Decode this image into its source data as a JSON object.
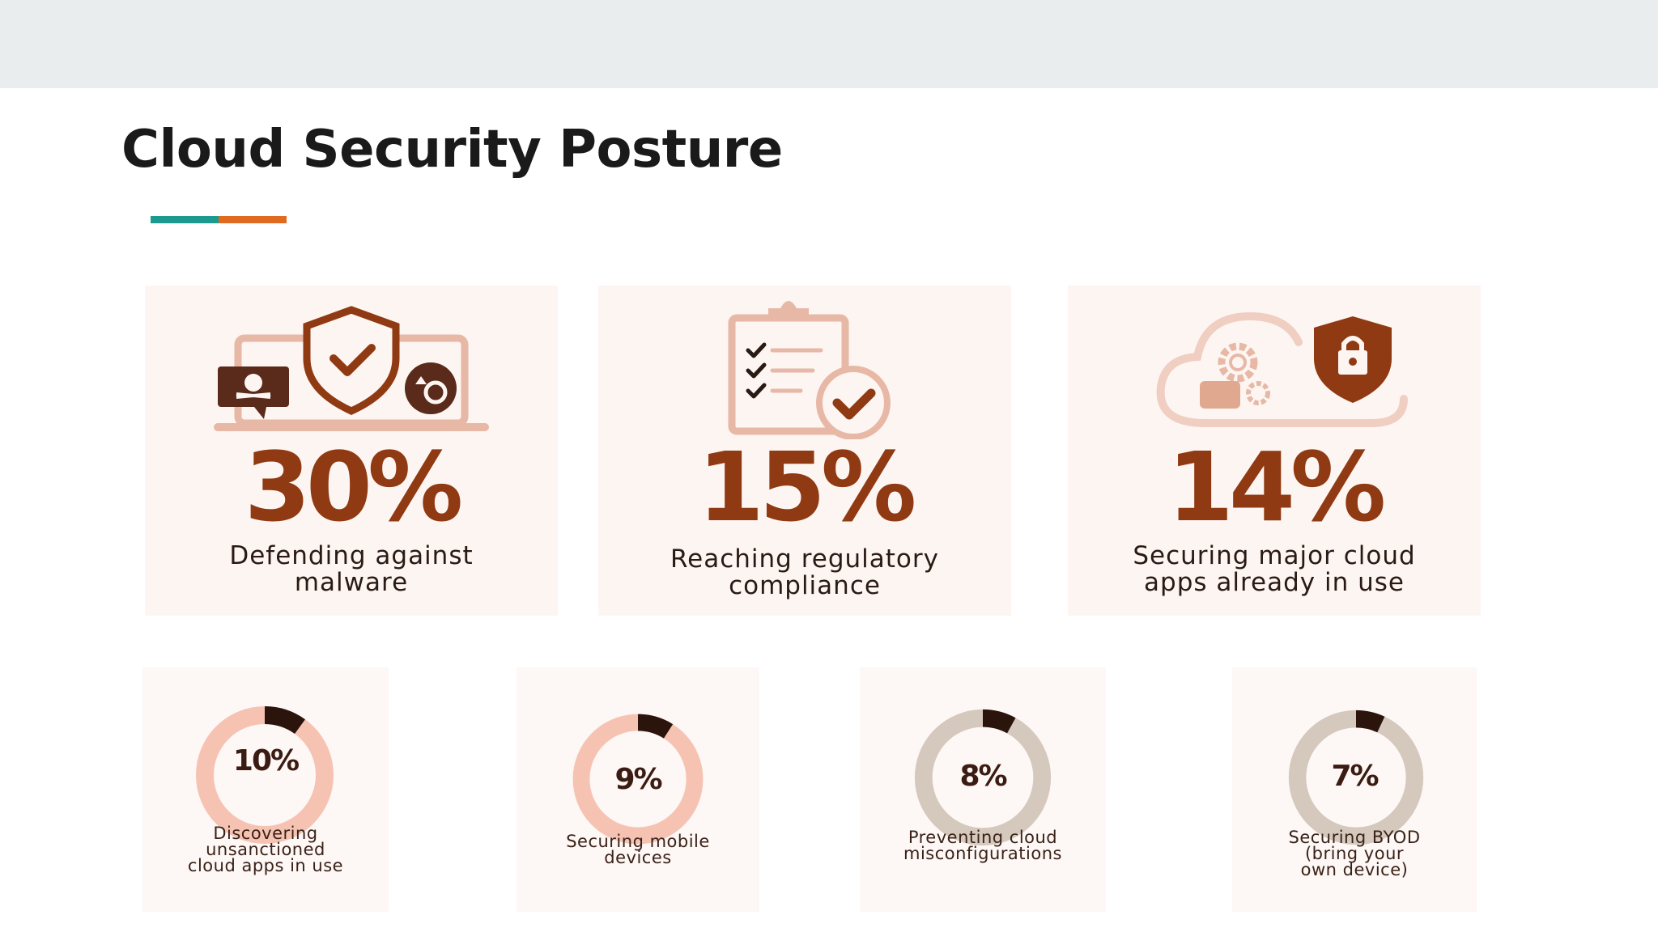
{
  "slide": {
    "title": "Cloud Security Posture",
    "colors": {
      "accent_teal": "#1d9a8f",
      "accent_orange": "#e06a1f",
      "stat_brown": "#8f3a12"
    }
  },
  "big_stats": [
    {
      "value": "30%",
      "label_lines": [
        "Defending against",
        "malware"
      ],
      "icon": "laptop-shield-malware-icon"
    },
    {
      "value": "15%",
      "label_lines": [
        "Reaching regulatory",
        "compliance"
      ],
      "icon": "clipboard-checklist-icon"
    },
    {
      "value": "14%",
      "label_lines": [
        "Securing major cloud",
        "apps already in use"
      ],
      "icon": "cloud-lock-shield-icon"
    }
  ],
  "small_stats": [
    {
      "value": "10%",
      "percent": 10,
      "label_lines": [
        "Discovering",
        "unsanctioned",
        "cloud apps in use"
      ]
    },
    {
      "value": "9%",
      "percent": 9,
      "label_lines": [
        "Securing mobile",
        "devices"
      ]
    },
    {
      "value": "8%",
      "percent": 8,
      "label_lines": [
        "Preventing cloud",
        "misconfigurations"
      ]
    },
    {
      "value": "7%",
      "percent": 7,
      "label_lines": [
        "Securing BYOD",
        "(bring your",
        "own device)"
      ]
    }
  ]
}
